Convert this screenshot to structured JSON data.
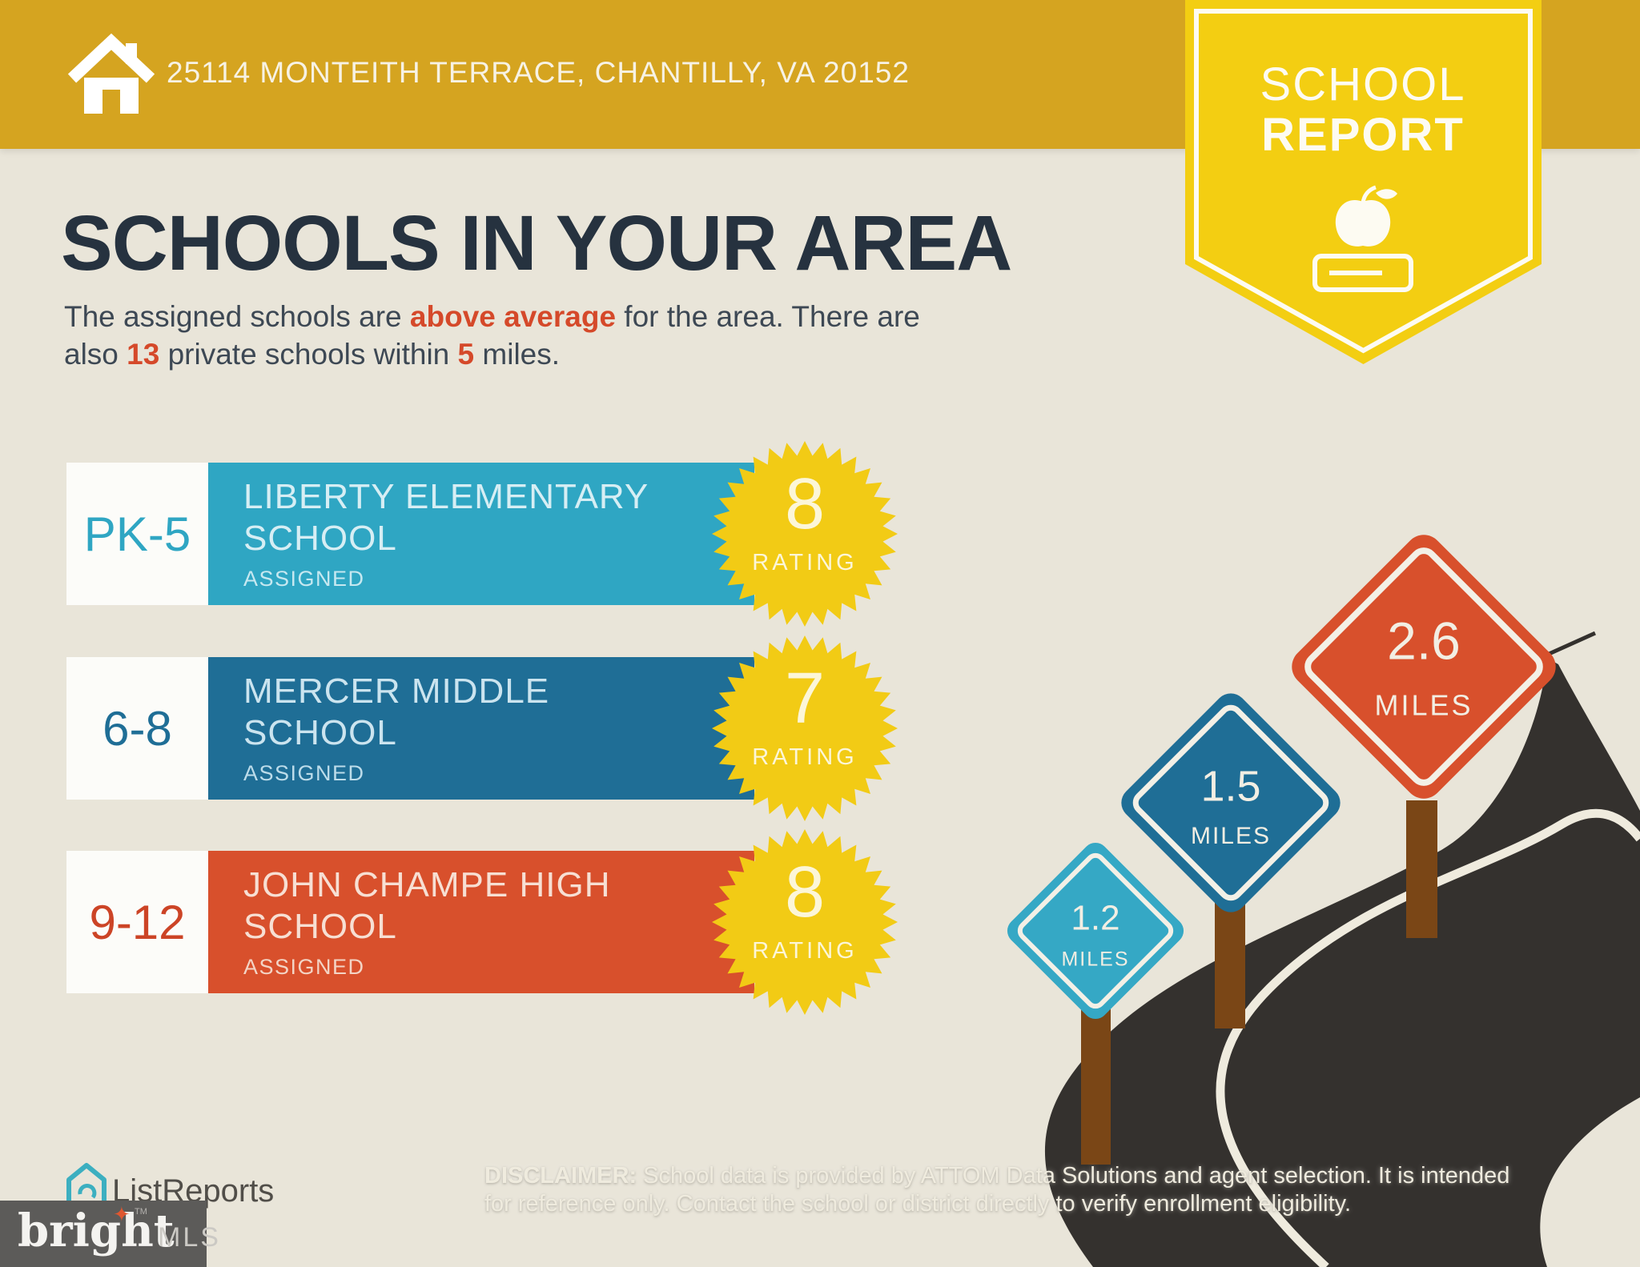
{
  "palette": {
    "header_gold": "#D5A420",
    "ribbon_yellow": "#F3CE12",
    "background": "#E9E5D9",
    "title_navy": "#26323F",
    "accent_red": "#D5492A",
    "teal": "#2FA6C3",
    "blue": "#1F6E96",
    "red": "#D8502C",
    "badge_yellow": "#F2CB15",
    "road_dark": "#34312E",
    "post_brown": "#7A4616",
    "bright_gray": "#5C5B59"
  },
  "header": {
    "address": "25114 MONTEITH TERRACE, CHANTILLY, VA 20152"
  },
  "ribbon": {
    "line1": "SCHOOL",
    "line2": "REPORT"
  },
  "main": {
    "title": "SCHOOLS IN YOUR AREA",
    "intro": {
      "p1": "The assigned schools are ",
      "b1": "above average",
      "p2": " for the area. There are",
      "p3": "also ",
      "b2": "13",
      "p4": " private schools within ",
      "b3": "5",
      "p5": " miles."
    }
  },
  "labels": {
    "rating": "RATING"
  },
  "schools": [
    {
      "grades": "PK-5",
      "name_line1": "LIBERTY ELEMENTARY",
      "name_line2": "SCHOOL",
      "status": "ASSIGNED",
      "rating": "8",
      "color": "#2FA6C3"
    },
    {
      "grades": "6-8",
      "name_line1": "MERCER MIDDLE",
      "name_line2": "SCHOOL",
      "status": "ASSIGNED",
      "rating": "7",
      "color": "#1F6E96"
    },
    {
      "grades": "9-12",
      "name_line1": "JOHN CHAMPE HIGH",
      "name_line2": "SCHOOL",
      "status": "ASSIGNED",
      "rating": "8",
      "color": "#D8502C"
    }
  ],
  "signs": [
    {
      "distance": "1.2",
      "unit": "MILES",
      "color": "#35A8C5"
    },
    {
      "distance": "1.5",
      "unit": "MILES",
      "color": "#1F6E96"
    },
    {
      "distance": "2.6",
      "unit": "MILES",
      "color": "#D8502C"
    }
  ],
  "footer": {
    "listreports": "ListReports",
    "disclaimer_label": "DISCLAIMER:",
    "disclaimer_rest1": " School data is provided by ATTOM Data Solutions and agent selection. It is intended",
    "disclaimer_line2": "for reference only. Contact the school or district directly to verify enrollment eligibility.",
    "bright": "bright",
    "bright_tm": "TM",
    "mls": "MLS"
  }
}
